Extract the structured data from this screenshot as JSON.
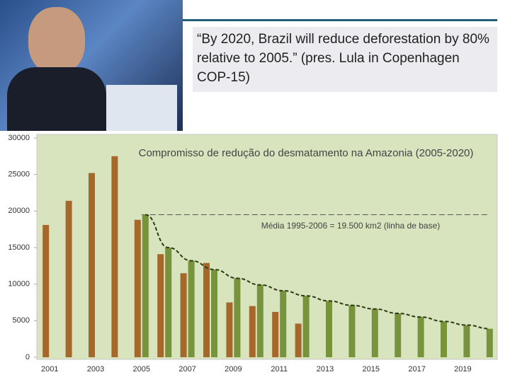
{
  "quote": "“By 2020, Brazil will reduce deforestation by 80% relative to 2005.” (pres. Lula in Copenhagen COP-15)",
  "chart_data": {
    "type": "bar",
    "title": "Compromisso de redução do desmatamento na Amazonia (2005-2020)",
    "annotation": "Média 1995-2006 = 19.500 km2 (linha de base)",
    "reference_line": 19500,
    "categories": [
      "2001",
      null,
      "2003",
      null,
      "2005",
      null,
      "2007",
      null,
      "2009",
      null,
      "2011",
      null,
      "2013",
      null,
      "2015",
      null,
      "2017",
      null,
      "2019",
      null
    ],
    "series": [
      {
        "color": "#a5682a",
        "values": [
          18100,
          21400,
          25200,
          27500,
          18800,
          14100,
          11500,
          12900,
          7500,
          7000,
          6200,
          4600,
          null,
          null,
          null,
          null,
          null,
          null,
          null,
          null
        ]
      },
      {
        "color": "#77933c",
        "values": [
          null,
          null,
          null,
          null,
          19500,
          15000,
          13200,
          12000,
          10800,
          9900,
          9100,
          8400,
          7700,
          7100,
          6600,
          6000,
          5500,
          4900,
          4400,
          3900
        ]
      }
    ],
    "ylim": [
      0,
      30000
    ],
    "yticks": [
      0,
      5000,
      10000,
      15000,
      20000,
      25000,
      30000
    ]
  }
}
